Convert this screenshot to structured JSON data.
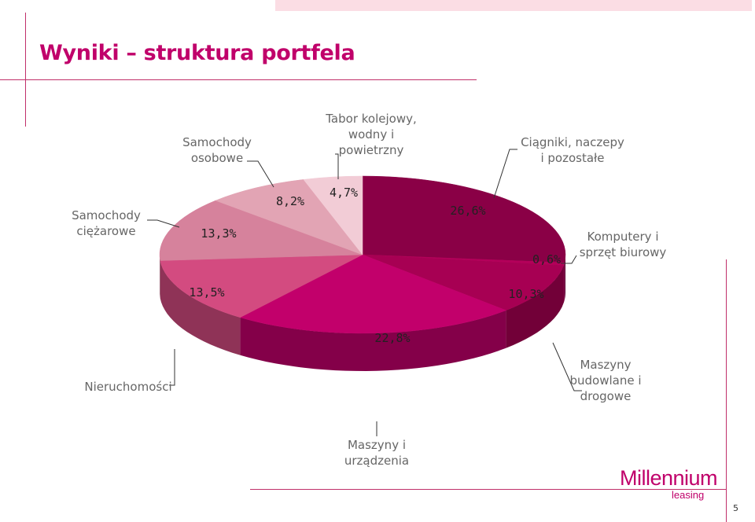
{
  "page": {
    "title": "Wyniki – struktura portfela",
    "page_number": "5",
    "logo_main": "Millennium",
    "logo_sub": "leasing"
  },
  "colors": {
    "accent": "#c0006a",
    "accent_light": "#fbdde4",
    "line": "#c0306a"
  },
  "chart_data": {
    "type": "pie",
    "title": "",
    "unit": "%",
    "slices": [
      {
        "label": "Ciągniki, naczepy i pozostałe",
        "label_lines": [
          "Ciągniki, naczepy",
          "i pozostałe"
        ],
        "value": 26.6,
        "value_text": "26,6%",
        "color": "#8a0046"
      },
      {
        "label": "Komputery i sprzęt biurowy",
        "label_lines": [
          "Komputery i",
          "sprzęt biurowy"
        ],
        "value": 0.6,
        "value_text": "0,6%",
        "color": "#b4005a"
      },
      {
        "label": "Maszyny budowlane i drogowe",
        "label_lines": [
          "Maszyny",
          "budowlane i",
          "drogowe"
        ],
        "value": 10.3,
        "value_text": "10,3%",
        "color": "#a70053"
      },
      {
        "label": "Maszyny i urządzenia",
        "label_lines": [
          "Maszyny i",
          "urządzenia"
        ],
        "value": 22.8,
        "value_text": "22,8%",
        "color": "#c2006b"
      },
      {
        "label": "Nieruchomości",
        "label_lines": [
          "Nieruchomości"
        ],
        "value": 13.5,
        "value_text": "13,5%",
        "color": "#d34b80"
      },
      {
        "label": "Samochody ciężarowe",
        "label_lines": [
          "Samochody",
          "ciężarowe"
        ],
        "value": 13.3,
        "value_text": "13,3%",
        "color": "#d6829c"
      },
      {
        "label": "Samochody osobowe",
        "label_lines": [
          "Samochody",
          "osobowe"
        ],
        "value": 8.2,
        "value_text": "8,2%",
        "color": "#e2a4b4"
      },
      {
        "label": "Tabor kolejowy, wodny i powietrzny",
        "label_lines": [
          "Tabor kolejowy,",
          "wodny i",
          "powietrzny"
        ],
        "value": 4.7,
        "value_text": "4,7%",
        "color": "#f2ccd6"
      }
    ]
  }
}
